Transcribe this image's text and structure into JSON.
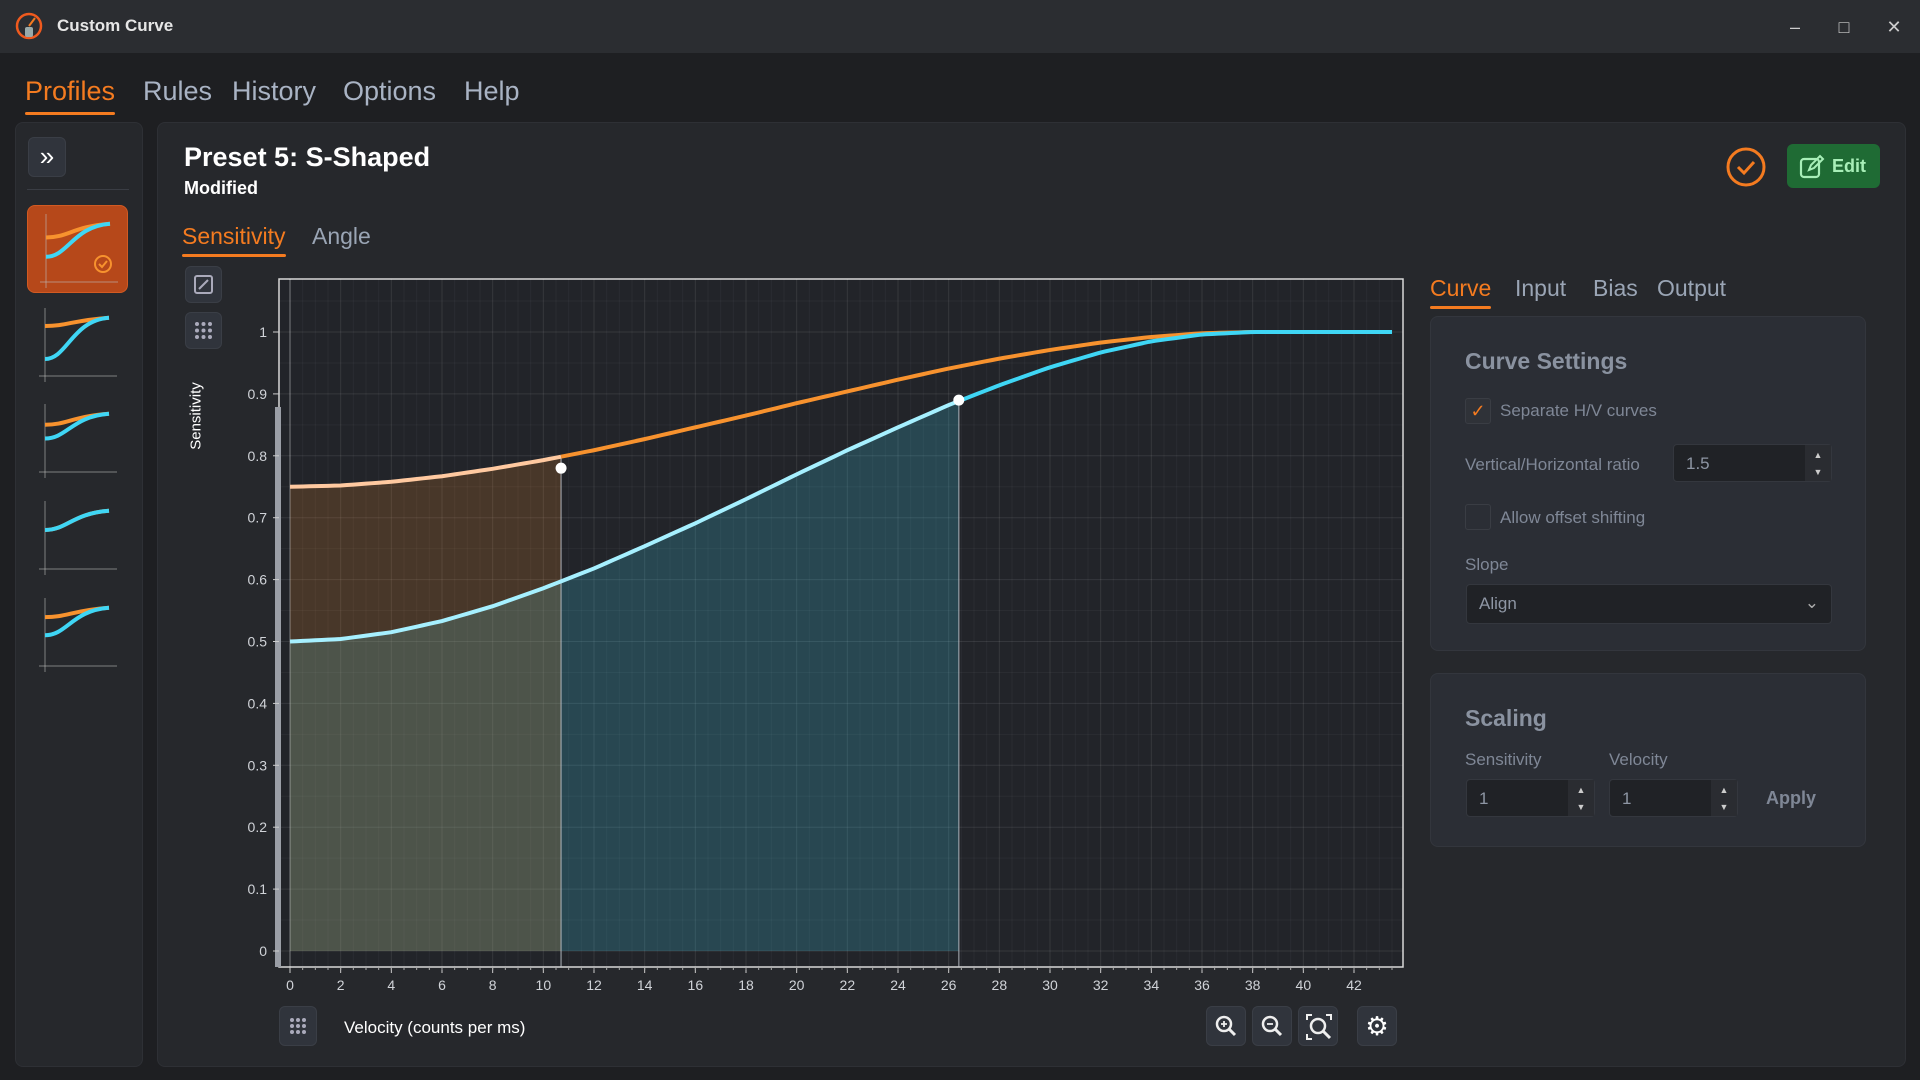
{
  "window": {
    "title": "Custom Curve",
    "controls": [
      "minimize",
      "maximize",
      "close"
    ]
  },
  "menu": {
    "items": [
      "Profiles",
      "Rules",
      "History",
      "Options",
      "Help"
    ],
    "active": "Profiles"
  },
  "profile": {
    "title": "Preset 5: S-Shaped",
    "status": "Modified",
    "edit_label": "Edit"
  },
  "sidebar": {
    "expand_icon": "double-chevron-right-icon",
    "presets": 5,
    "selected": 1
  },
  "chart_tabs": {
    "items": [
      "Sensitivity",
      "Angle"
    ],
    "active": "Sensitivity"
  },
  "settings_tabs": {
    "items": [
      "Curve",
      "Input",
      "Bias",
      "Output"
    ],
    "active": "Curve"
  },
  "curve_settings": {
    "title": "Curve Settings",
    "separate_hv": {
      "label": "Separate H/V curves",
      "checked": true
    },
    "ratio": {
      "label": "Vertical/Horizontal ratio",
      "value": "1.5"
    },
    "offset": {
      "label": "Allow offset shifting",
      "checked": false
    },
    "slope": {
      "label": "Slope",
      "value": "Align"
    }
  },
  "scaling": {
    "title": "Scaling",
    "sensitivity": {
      "label": "Sensitivity",
      "value": "1"
    },
    "velocity": {
      "label": "Velocity",
      "value": "1"
    },
    "apply": "Apply"
  },
  "colors": {
    "accent": "#f47b20",
    "horizontal": "#f7922e",
    "vertical": "#3fd6f5",
    "edit": "#1f6b34"
  },
  "chart_data": {
    "type": "line",
    "xlabel": "Velocity (counts per ms)",
    "ylabel": "Sensitivity",
    "xlim": [
      0,
      44
    ],
    "ylim": [
      0,
      1.08
    ],
    "xticks": [
      0,
      2,
      4,
      6,
      8,
      10,
      12,
      14,
      16,
      18,
      20,
      22,
      24,
      26,
      28,
      30,
      32,
      34,
      36,
      38,
      40,
      42
    ],
    "yticks": [
      0,
      0.1,
      0.2,
      0.3,
      0.4,
      0.5,
      0.6,
      0.7,
      0.8,
      0.9,
      1
    ],
    "ytick_labels": [
      "0",
      "0.1",
      "0.2",
      "0.3",
      "0.4",
      "0.5",
      "0.6",
      "0.7",
      "0.8",
      "0.9",
      "1"
    ],
    "grid": true,
    "x": [
      0,
      2,
      4,
      6,
      8,
      10,
      12,
      14,
      16,
      18,
      20,
      22,
      24,
      26,
      28,
      30,
      32,
      34,
      36,
      38,
      40,
      42,
      44
    ],
    "series": [
      {
        "color": "#f7922e",
        "values": [
          0.75,
          0.752,
          0.758,
          0.767,
          0.779,
          0.793,
          0.809,
          0.827,
          0.846,
          0.865,
          0.885,
          0.904,
          0.923,
          0.941,
          0.957,
          0.971,
          0.983,
          0.992,
          0.998,
          1,
          1,
          1,
          1
        ],
        "control_point": [
          10.7,
          0.78
        ]
      },
      {
        "color": "#3fd6f5",
        "values": [
          0.5,
          0.504,
          0.515,
          0.533,
          0.557,
          0.586,
          0.618,
          0.654,
          0.691,
          0.73,
          0.77,
          0.809,
          0.846,
          0.882,
          0.914,
          0.943,
          0.967,
          0.985,
          0.996,
          1,
          1,
          1,
          1
        ],
        "control_point": [
          26.4,
          0.89
        ]
      }
    ]
  },
  "toolbar": {
    "zoom_in": "zoom-in",
    "zoom_out": "zoom-out",
    "zoom_fit": "zoom-fit",
    "settings": "settings"
  }
}
